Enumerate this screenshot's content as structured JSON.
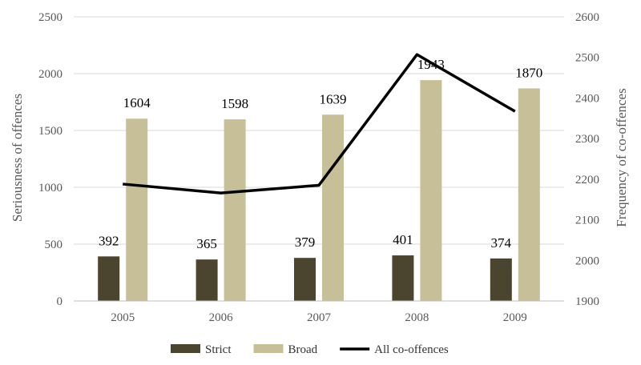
{
  "chart_data": {
    "type": "bar",
    "categories": [
      "2005",
      "2006",
      "2007",
      "2008",
      "2009"
    ],
    "series": [
      {
        "name": "Strict",
        "kind": "bar",
        "axis": "left",
        "values": [
          392,
          365,
          379,
          401,
          374
        ],
        "color": "#4b4530"
      },
      {
        "name": "Broad",
        "kind": "bar",
        "axis": "left",
        "values": [
          1604,
          1598,
          1639,
          1943,
          1870
        ],
        "color": "#c6bf98"
      },
      {
        "name": "All co-offences",
        "kind": "line",
        "axis": "right",
        "values": [
          2188,
          2166,
          2185,
          2507,
          2367
        ],
        "color": "#000000"
      }
    ],
    "ylabel": "Seriousness of offences",
    "y2label": "Frequency of co-offences",
    "ylim": [
      0,
      2500
    ],
    "yticks": [
      0,
      500,
      1000,
      1500,
      2000,
      2500
    ],
    "y2lim": [
      1900,
      2600
    ],
    "y2ticks": [
      1900,
      2000,
      2100,
      2200,
      2300,
      2400,
      2500,
      2600
    ],
    "grid": true,
    "legend_position": "bottom"
  }
}
